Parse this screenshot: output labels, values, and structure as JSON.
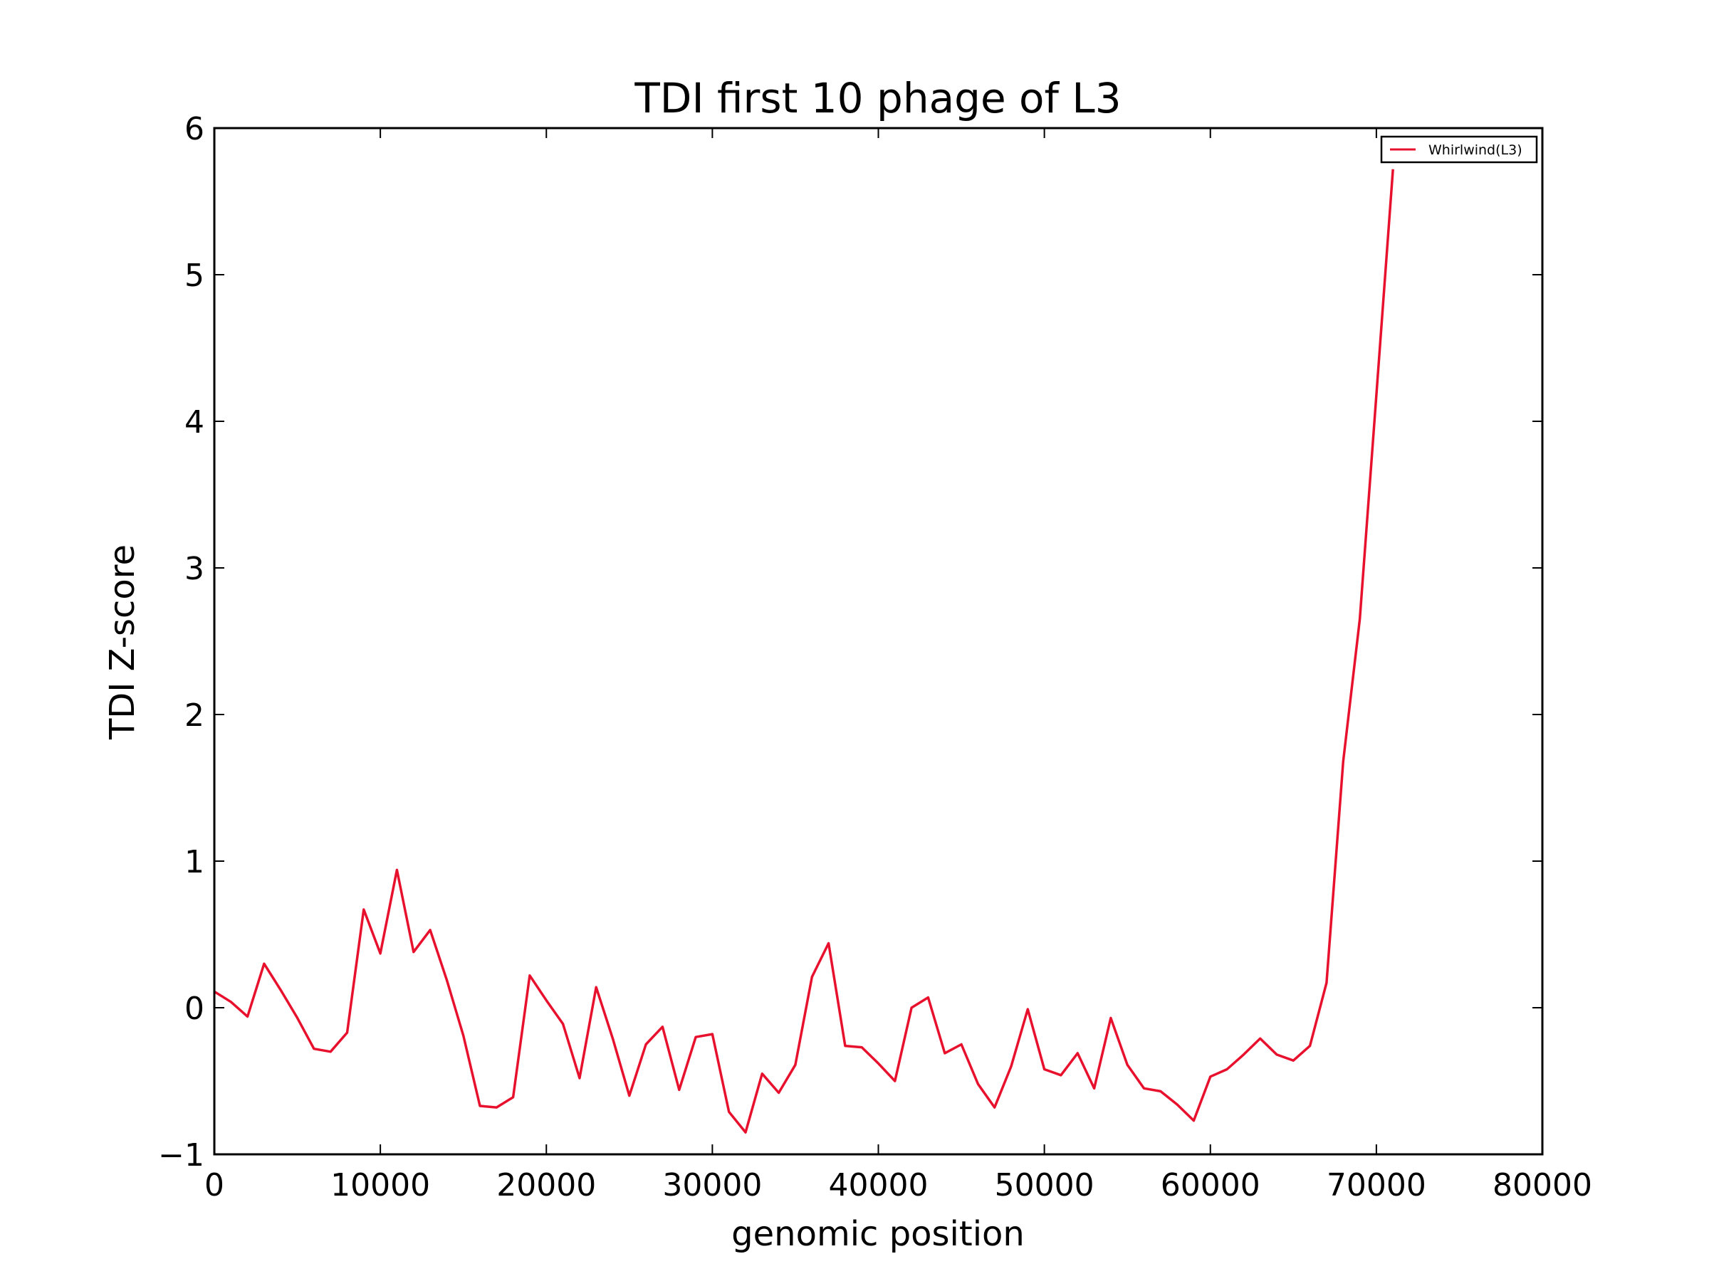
{
  "chart_data": {
    "type": "line",
    "title": "TDI first 10 phage of L3",
    "xlabel": "genomic position",
    "ylabel": "TDI Z-score",
    "xlim": [
      0,
      80000
    ],
    "ylim": [
      -1,
      6
    ],
    "x_ticks": [
      0,
      10000,
      20000,
      30000,
      40000,
      50000,
      60000,
      70000,
      80000
    ],
    "y_ticks": [
      -1,
      0,
      1,
      2,
      3,
      4,
      5,
      6
    ],
    "x_tick_labels": [
      "0",
      "10000",
      "20000",
      "30000",
      "40000",
      "50000",
      "60000",
      "70000",
      "80000"
    ],
    "y_tick_labels": [
      "−1",
      "0",
      "1",
      "2",
      "3",
      "4",
      "5",
      "6"
    ],
    "grid": false,
    "legend_position": "top-right",
    "series": [
      {
        "name": "Whirlwind(L3)",
        "color": "#e8112d",
        "x": [
          0,
          1000,
          2000,
          3000,
          4000,
          5000,
          6000,
          7000,
          8000,
          9000,
          10000,
          11000,
          12000,
          13000,
          14000,
          15000,
          16000,
          17000,
          18000,
          19000,
          20000,
          21000,
          22000,
          23000,
          24000,
          25000,
          26000,
          27000,
          28000,
          29000,
          30000,
          31000,
          32000,
          33000,
          34000,
          35000,
          36000,
          37000,
          38000,
          39000,
          40000,
          41000,
          42000,
          43000,
          44000,
          45000,
          46000,
          47000,
          48000,
          49000,
          50000,
          51000,
          52000,
          53000,
          54000,
          55000,
          56000,
          57000,
          58000,
          59000,
          60000,
          61000,
          62000,
          63000,
          64000,
          65000,
          66000,
          67000,
          68000,
          69000,
          70000,
          71000
        ],
        "y": [
          0.11,
          0.04,
          -0.06,
          0.3,
          0.12,
          -0.07,
          -0.28,
          -0.3,
          -0.17,
          0.67,
          0.37,
          0.94,
          0.38,
          0.53,
          0.19,
          -0.19,
          -0.67,
          -0.68,
          -0.61,
          0.22,
          0.05,
          -0.11,
          -0.48,
          0.14,
          -0.21,
          -0.6,
          -0.25,
          -0.13,
          -0.56,
          -0.2,
          -0.18,
          -0.71,
          -0.85,
          -0.45,
          -0.58,
          -0.39,
          0.21,
          0.44,
          -0.26,
          -0.27,
          -0.38,
          -0.5,
          0.0,
          0.07,
          -0.31,
          -0.25,
          -0.52,
          -0.68,
          -0.4,
          -0.01,
          -0.42,
          -0.46,
          -0.31,
          -0.55,
          -0.07,
          -0.39,
          -0.55,
          -0.57,
          -0.66,
          -0.77,
          -0.47,
          -0.42,
          -0.32,
          -0.21,
          -0.32,
          -0.36,
          -0.26,
          0.17,
          1.68,
          2.65,
          4.18,
          5.72
        ]
      }
    ]
  }
}
